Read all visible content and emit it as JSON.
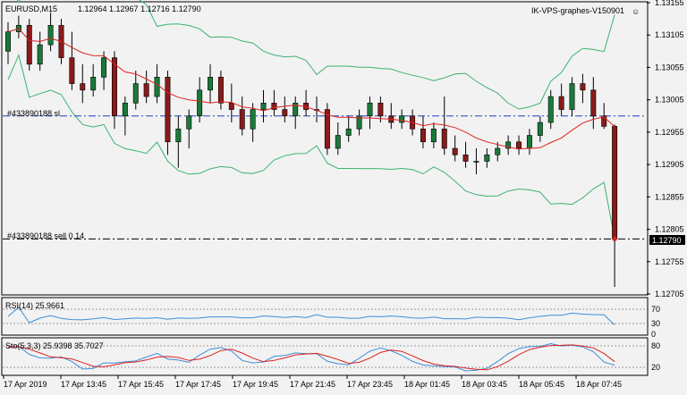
{
  "header": {
    "symbol_timeframe": "EURUSD,M15",
    "ohlc": "1.12964 1.12967 1.12716 1.12790",
    "account_label": "IK-VPS-graphes-V150901",
    "smiley": "☺"
  },
  "colors": {
    "background": "#f2f2f2",
    "grid": "#b4b4b4",
    "bull_candle": "#1a7a3a",
    "bear_candle": "#8b1a1a",
    "ma_line": "#e02020",
    "band_line": "#3cb371",
    "order_line": "#1f3fbf",
    "indicator_blue": "#3a8fd8",
    "indicator_red": "#e02020"
  },
  "orders": {
    "sl_label": "#433890188 sl",
    "sell_label": "#433890188 sell 0.14",
    "current_price_badge": "1.12790"
  },
  "price_axis": {
    "min": 1.12705,
    "max": 1.13155,
    "ticks": [
      "1.13155",
      "1.13105",
      "1.13055",
      "1.13005",
      "1.12955",
      "1.12905",
      "1.12855",
      "1.12805",
      "1.12755",
      "1.12705"
    ],
    "sl_price": 1.1298,
    "sell_price": 1.1279
  },
  "rsi": {
    "label": "RSI(14) 25.9661",
    "levels": [
      "70",
      "30",
      "0"
    ],
    "level_values": [
      70,
      30
    ]
  },
  "stoch": {
    "label": "Sto(5,3,3) 25.9398 35.7027",
    "levels": [
      "80",
      "20"
    ],
    "level_values": [
      80,
      20
    ]
  },
  "time_axis": {
    "labels": [
      "17 Apr 2019",
      "17 Apr 13:45",
      "17 Apr 15:45",
      "17 Apr 17:45",
      "17 Apr 19:45",
      "17 Apr 21:45",
      "17 Apr 23:45",
      "18 Apr 01:45",
      "18 Apr 03:45",
      "18 Apr 05:45",
      "18 Apr 07:45"
    ]
  },
  "chart_data": {
    "type": "candlestick",
    "ylim": [
      1.12705,
      1.13155
    ],
    "candles": [
      {
        "o": 1.1308,
        "h": 1.13125,
        "l": 1.1306,
        "c": 1.1311
      },
      {
        "o": 1.1311,
        "h": 1.13135,
        "l": 1.131,
        "c": 1.1312
      },
      {
        "o": 1.1312,
        "h": 1.1313,
        "l": 1.1305,
        "c": 1.1306
      },
      {
        "o": 1.1306,
        "h": 1.1311,
        "l": 1.1305,
        "c": 1.1309
      },
      {
        "o": 1.1309,
        "h": 1.1314,
        "l": 1.1308,
        "c": 1.1312
      },
      {
        "o": 1.1312,
        "h": 1.1313,
        "l": 1.1306,
        "c": 1.1307
      },
      {
        "o": 1.1307,
        "h": 1.1311,
        "l": 1.1302,
        "c": 1.1303
      },
      {
        "o": 1.1303,
        "h": 1.1306,
        "l": 1.13,
        "c": 1.1302
      },
      {
        "o": 1.1302,
        "h": 1.1306,
        "l": 1.1301,
        "c": 1.1304
      },
      {
        "o": 1.1304,
        "h": 1.1308,
        "l": 1.1302,
        "c": 1.1307
      },
      {
        "o": 1.1307,
        "h": 1.1308,
        "l": 1.1296,
        "c": 1.1298
      },
      {
        "o": 1.1298,
        "h": 1.1301,
        "l": 1.1295,
        "c": 1.13
      },
      {
        "o": 1.13,
        "h": 1.1305,
        "l": 1.1299,
        "c": 1.1303
      },
      {
        "o": 1.1303,
        "h": 1.1305,
        "l": 1.13,
        "c": 1.1301
      },
      {
        "o": 1.1301,
        "h": 1.1306,
        "l": 1.13,
        "c": 1.1304
      },
      {
        "o": 1.1304,
        "h": 1.1305,
        "l": 1.1292,
        "c": 1.1294
      },
      {
        "o": 1.1294,
        "h": 1.1298,
        "l": 1.129,
        "c": 1.1296
      },
      {
        "o": 1.1296,
        "h": 1.1299,
        "l": 1.1293,
        "c": 1.1298
      },
      {
        "o": 1.1298,
        "h": 1.1304,
        "l": 1.1297,
        "c": 1.1302
      },
      {
        "o": 1.1302,
        "h": 1.1306,
        "l": 1.13,
        "c": 1.1304
      },
      {
        "o": 1.1304,
        "h": 1.1305,
        "l": 1.1299,
        "c": 1.13
      },
      {
        "o": 1.13,
        "h": 1.1303,
        "l": 1.1297,
        "c": 1.1299
      },
      {
        "o": 1.1299,
        "h": 1.1301,
        "l": 1.1295,
        "c": 1.1296
      },
      {
        "o": 1.1296,
        "h": 1.13,
        "l": 1.1294,
        "c": 1.1299
      },
      {
        "o": 1.1299,
        "h": 1.1302,
        "l": 1.1297,
        "c": 1.13
      },
      {
        "o": 1.13,
        "h": 1.1302,
        "l": 1.1298,
        "c": 1.1299
      },
      {
        "o": 1.1299,
        "h": 1.1301,
        "l": 1.1297,
        "c": 1.1298
      },
      {
        "o": 1.1298,
        "h": 1.1301,
        "l": 1.1296,
        "c": 1.13
      },
      {
        "o": 1.13,
        "h": 1.1302,
        "l": 1.1298,
        "c": 1.1299
      },
      {
        "o": 1.1299,
        "h": 1.1301,
        "l": 1.1297,
        "c": 1.1299
      },
      {
        "o": 1.1299,
        "h": 1.13,
        "l": 1.1292,
        "c": 1.1293
      },
      {
        "o": 1.1293,
        "h": 1.1297,
        "l": 1.1292,
        "c": 1.1295
      },
      {
        "o": 1.1295,
        "h": 1.1298,
        "l": 1.1294,
        "c": 1.1296
      },
      {
        "o": 1.1296,
        "h": 1.1299,
        "l": 1.1295,
        "c": 1.1298
      },
      {
        "o": 1.1298,
        "h": 1.1301,
        "l": 1.1296,
        "c": 1.13
      },
      {
        "o": 1.13,
        "h": 1.1301,
        "l": 1.1297,
        "c": 1.1298
      },
      {
        "o": 1.1298,
        "h": 1.13,
        "l": 1.1296,
        "c": 1.1297
      },
      {
        "o": 1.1297,
        "h": 1.1299,
        "l": 1.1296,
        "c": 1.1298
      },
      {
        "o": 1.1298,
        "h": 1.1299,
        "l": 1.1295,
        "c": 1.1296
      },
      {
        "o": 1.1296,
        "h": 1.1298,
        "l": 1.1293,
        "c": 1.1294
      },
      {
        "o": 1.1294,
        "h": 1.1297,
        "l": 1.1293,
        "c": 1.1296
      },
      {
        "o": 1.1296,
        "h": 1.1301,
        "l": 1.1292,
        "c": 1.1293
      },
      {
        "o": 1.1293,
        "h": 1.1295,
        "l": 1.1291,
        "c": 1.1292
      },
      {
        "o": 1.1292,
        "h": 1.1294,
        "l": 1.129,
        "c": 1.1291
      },
      {
        "o": 1.1291,
        "h": 1.1293,
        "l": 1.1289,
        "c": 1.1291
      },
      {
        "o": 1.1291,
        "h": 1.1293,
        "l": 1.129,
        "c": 1.1292
      },
      {
        "o": 1.1292,
        "h": 1.1294,
        "l": 1.1291,
        "c": 1.1293
      },
      {
        "o": 1.1293,
        "h": 1.1295,
        "l": 1.1292,
        "c": 1.1294
      },
      {
        "o": 1.1294,
        "h": 1.1295,
        "l": 1.1292,
        "c": 1.1293
      },
      {
        "o": 1.1293,
        "h": 1.1296,
        "l": 1.1292,
        "c": 1.1295
      },
      {
        "o": 1.1295,
        "h": 1.1298,
        "l": 1.1294,
        "c": 1.1297
      },
      {
        "o": 1.1297,
        "h": 1.1302,
        "l": 1.1296,
        "c": 1.1301
      },
      {
        "o": 1.1301,
        "h": 1.1303,
        "l": 1.1298,
        "c": 1.1299
      },
      {
        "o": 1.1299,
        "h": 1.1304,
        "l": 1.1298,
        "c": 1.1303
      },
      {
        "o": 1.1303,
        "h": 1.13045,
        "l": 1.13,
        "c": 1.1302
      },
      {
        "o": 1.1302,
        "h": 1.1304,
        "l": 1.1296,
        "c": 1.1298
      },
      {
        "o": 1.1298,
        "h": 1.13,
        "l": 1.1296,
        "c": 1.12964
      },
      {
        "o": 1.12964,
        "h": 1.12967,
        "l": 1.12716,
        "c": 1.1279
      }
    ],
    "xlabel": "",
    "ylabel": ""
  }
}
